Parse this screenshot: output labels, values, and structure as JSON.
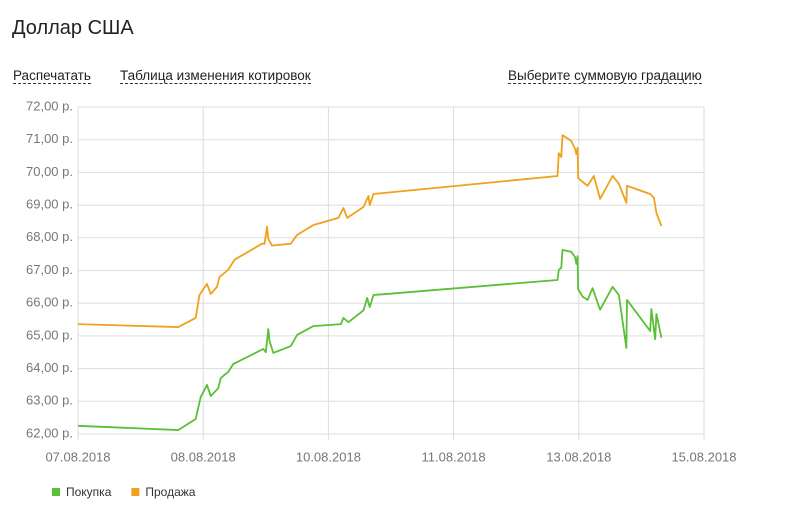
{
  "page": {
    "title": "Доллар США",
    "links": [
      "Распечатать",
      "Таблица изменения котировок",
      "Выберите суммовую градацию"
    ]
  },
  "chart_data": {
    "type": "line",
    "xlim": [
      0,
      5
    ],
    "xticks": [
      {
        "value": 0,
        "label": "07.08.2018"
      },
      {
        "value": 1,
        "label": "08.08.2018"
      },
      {
        "value": 2,
        "label": "10.08.2018"
      },
      {
        "value": 3,
        "label": "11.08.2018"
      },
      {
        "value": 4,
        "label": "13.08.2018"
      },
      {
        "value": 5,
        "label": "15.08.2018"
      }
    ],
    "ylim": [
      62,
      72
    ],
    "yticks": [
      {
        "value": 62,
        "label": "62,00 р."
      },
      {
        "value": 63,
        "label": "63,00 р."
      },
      {
        "value": 64,
        "label": "64,00 р."
      },
      {
        "value": 65,
        "label": "65,00 р."
      },
      {
        "value": 66,
        "label": "66,00 р."
      },
      {
        "value": 67,
        "label": "67,00 р."
      },
      {
        "value": 68,
        "label": "68,00 р."
      },
      {
        "value": 69,
        "label": "69,00 р."
      },
      {
        "value": 70,
        "label": "70,00 р."
      },
      {
        "value": 71,
        "label": "71,00 р."
      },
      {
        "value": 72,
        "label": "72,00 р."
      }
    ],
    "grid": true,
    "series": [
      {
        "name": "Покупка",
        "color": "#5bbf37",
        "x": [
          0,
          0.8,
          0.94,
          0.98,
          1.03,
          1.06,
          1.12,
          1.14,
          1.2,
          1.24,
          1.48,
          1.5,
          1.52,
          1.53,
          1.56,
          1.7,
          1.75,
          1.88,
          2.1,
          2.12,
          2.16,
          2.28,
          2.31,
          2.33,
          2.36,
          3.83,
          3.84,
          3.86,
          3.87,
          3.94,
          3.97,
          3.98,
          3.99,
          3.995,
          4.03,
          4.07,
          4.11,
          4.17,
          4.27,
          4.32,
          4.38,
          4.385,
          4.57,
          4.58,
          4.61,
          4.62,
          4.66
        ],
        "values": [
          62.25,
          62.12,
          62.46,
          63.13,
          63.5,
          63.16,
          63.4,
          63.71,
          63.9,
          64.14,
          64.6,
          64.5,
          65.21,
          64.84,
          64.48,
          64.69,
          65.03,
          65.3,
          65.36,
          65.55,
          65.42,
          65.78,
          66.16,
          65.88,
          66.25,
          66.71,
          67.02,
          67.08,
          67.63,
          67.57,
          67.41,
          67.2,
          67.44,
          66.43,
          66.2,
          66.1,
          66.46,
          65.8,
          66.5,
          66.25,
          64.63,
          66.1,
          65.15,
          65.82,
          64.9,
          65.67,
          64.94
        ]
      },
      {
        "name": "Продажа",
        "color": "#f0a11e",
        "x": [
          0,
          0.8,
          0.94,
          0.97,
          1.03,
          1.06,
          1.11,
          1.13,
          1.2,
          1.25,
          1.47,
          1.49,
          1.51,
          1.52,
          1.55,
          1.7,
          1.75,
          1.88,
          2.08,
          2.12,
          2.15,
          2.28,
          2.32,
          2.33,
          2.36,
          3.83,
          3.84,
          3.86,
          3.87,
          3.94,
          3.97,
          3.98,
          3.99,
          3.995,
          4.03,
          4.07,
          4.12,
          4.17,
          4.27,
          4.32,
          4.38,
          4.385,
          4.57,
          4.6,
          4.62,
          4.66
        ],
        "values": [
          65.36,
          65.27,
          65.55,
          66.25,
          66.59,
          66.28,
          66.5,
          66.8,
          67.02,
          67.33,
          67.82,
          67.82,
          68.34,
          67.97,
          67.76,
          67.82,
          68.09,
          68.39,
          68.61,
          68.91,
          68.61,
          68.94,
          69.28,
          69.0,
          69.34,
          69.89,
          70.59,
          70.47,
          71.14,
          70.96,
          70.72,
          70.56,
          70.75,
          69.83,
          69.71,
          69.59,
          69.89,
          69.19,
          69.89,
          69.65,
          69.07,
          69.59,
          69.34,
          69.22,
          68.76,
          68.36
        ]
      }
    ]
  }
}
